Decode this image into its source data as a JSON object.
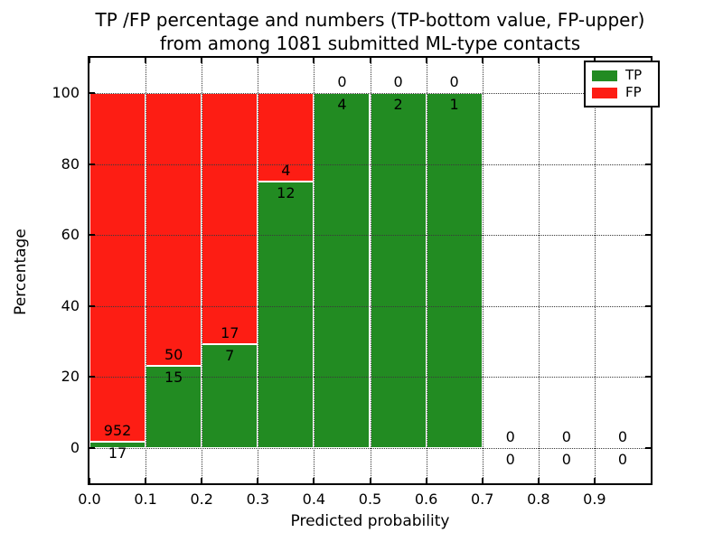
{
  "figure": {
    "title_line1": "TP /FP percentage and numbers (TP-bottom value, FP-upper)",
    "title_line2": "from among 1081 submitted ML-type contacts",
    "xlabel": "Predicted probability",
    "ylabel": "Percentage",
    "background_color": "#ffffff",
    "spine_color": "#000000",
    "grid_color": "#3a3a3a"
  },
  "legend": {
    "position": "upper-right",
    "entries": [
      {
        "label": "TP",
        "color": "#228b22"
      },
      {
        "label": "FP",
        "color": "#fd1d14"
      }
    ]
  },
  "chart_data": {
    "type": "bar",
    "stacked": true,
    "title": "TP /FP percentage and numbers (TP-bottom value, FP-upper) from among 1081 submitted ML-type contacts",
    "xlabel": "Predicted probability",
    "ylabel": "Percentage",
    "total_contacts": 1081,
    "bin_starts": [
      0.0,
      0.1,
      0.2,
      0.3,
      0.4,
      0.5,
      0.6,
      0.7,
      0.8,
      0.9
    ],
    "bin_width": 0.1,
    "series": [
      {
        "name": "TP",
        "color": "#228b22",
        "counts": [
          17,
          15,
          7,
          12,
          4,
          2,
          1,
          0,
          0,
          0
        ],
        "percent": [
          1.75,
          23.08,
          29.17,
          75.0,
          100.0,
          100.0,
          100.0,
          0.0,
          0.0,
          0.0
        ]
      },
      {
        "name": "FP",
        "color": "#fd1d14",
        "counts": [
          952,
          50,
          17,
          4,
          0,
          0,
          0,
          0,
          0,
          0
        ],
        "percent": [
          98.25,
          76.92,
          70.83,
          25.0,
          0.0,
          0.0,
          0.0,
          0.0,
          0.0,
          0.0
        ]
      }
    ],
    "label_note": "TP count printed below segment boundary, FP count above",
    "xlim": [
      0.0,
      1.0
    ],
    "ylim": [
      -10,
      110
    ],
    "x_ticks": [
      "0.0",
      "0.1",
      "0.2",
      "0.3",
      "0.4",
      "0.5",
      "0.6",
      "0.7",
      "0.8",
      "0.9"
    ],
    "x_tick_values": [
      0.0,
      0.1,
      0.2,
      0.3,
      0.4,
      0.5,
      0.6,
      0.7,
      0.8,
      0.9
    ],
    "y_ticks": [
      "0",
      "20",
      "40",
      "60",
      "80",
      "100"
    ],
    "y_tick_values": [
      0,
      20,
      40,
      60,
      80,
      100
    ],
    "grid": "dotted",
    "legend_position": "upper-right"
  }
}
